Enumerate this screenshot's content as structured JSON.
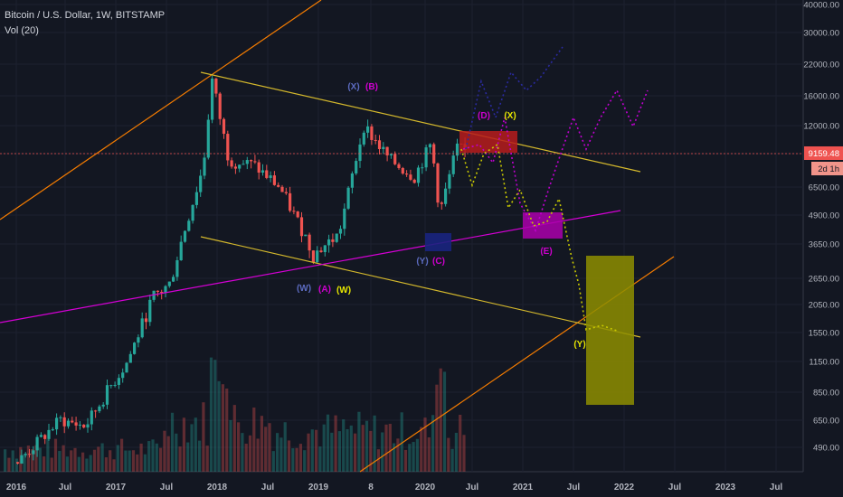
{
  "header": {
    "symbol_line": "Bitcoin / U.S. Dollar, 1W, BITSTAMP",
    "volume_line": "Vol (20)"
  },
  "price_badge": {
    "value": "9159.48",
    "countdown": "2d 1h"
  },
  "colors": {
    "background": "#131722",
    "up": "#26a69a",
    "down": "#ef5350",
    "trend_orange": "#f57c00",
    "channel_yellow": "#d4b82c",
    "support_magenta": "#d500d5",
    "proj_purple": "#c000d0",
    "proj_navy": "#2a2aa0",
    "proj_yellow": "#c8c800",
    "box_red": "#b71c1c",
    "box_blue": "#1a237e",
    "box_magenta": "#aa00aa",
    "box_olive": "#8e8e00"
  },
  "chart_data": {
    "type": "candlestick",
    "y_axis": {
      "scale": "log",
      "position": "right",
      "ticks": [
        40000,
        30000,
        22000,
        16000,
        12000,
        9000,
        6500,
        4900,
        3650,
        2650,
        2050,
        1550,
        1150,
        850,
        650,
        490
      ]
    },
    "x_axis": {
      "ticks": [
        "2016",
        "Jul",
        "2017",
        "Jul",
        "2018",
        "Jul",
        "2019",
        "8",
        "2020",
        "Jul",
        "2021",
        "Jul",
        "2022",
        "Jul",
        "2023",
        "Jul"
      ]
    },
    "last_price": 9159.48,
    "price_anchors": [
      [
        "2016-01",
        420
      ],
      [
        "2016-06",
        650
      ],
      [
        "2016-09",
        610
      ],
      [
        "2016-12",
        900
      ],
      [
        "2017-02",
        1150
      ],
      [
        "2017-05",
        2200
      ],
      [
        "2017-07",
        2500
      ],
      [
        "2017-09",
        4500
      ],
      [
        "2017-11",
        8000
      ],
      [
        "2017-12",
        19000
      ],
      [
        "2018-02",
        8500
      ],
      [
        "2018-05",
        8000
      ],
      [
        "2018-08",
        6500
      ],
      [
        "2018-11",
        4000
      ],
      [
        "2018-12",
        3300
      ],
      [
        "2019-03",
        4000
      ],
      [
        "2019-06",
        12000
      ],
      [
        "2019-09",
        8500
      ],
      [
        "2019-12",
        7200
      ],
      [
        "2020-02",
        10000
      ],
      [
        "2020-03",
        5000
      ],
      [
        "2020-05",
        9500
      ],
      [
        "2020-06",
        9159
      ]
    ],
    "wave_labels": [
      {
        "text": "(X)",
        "color": "#5c6bc0"
      },
      {
        "text": "(B)",
        "color": "#ce00ce"
      },
      {
        "text": "(W)",
        "color": "#5c6bc0"
      },
      {
        "text": "(A)",
        "color": "#ce00ce"
      },
      {
        "text": "(W)",
        "color": "#e6e600"
      },
      {
        "text": "(Y)",
        "color": "#5c6bc0"
      },
      {
        "text": "(C)",
        "color": "#ce00ce"
      },
      {
        "text": "(D)",
        "color": "#ce00ce"
      },
      {
        "text": "(X)",
        "color": "#e6e600"
      },
      {
        "text": "(E)",
        "color": "#ce00ce"
      },
      {
        "text": "(Y)",
        "color": "#e6e600"
      }
    ]
  }
}
